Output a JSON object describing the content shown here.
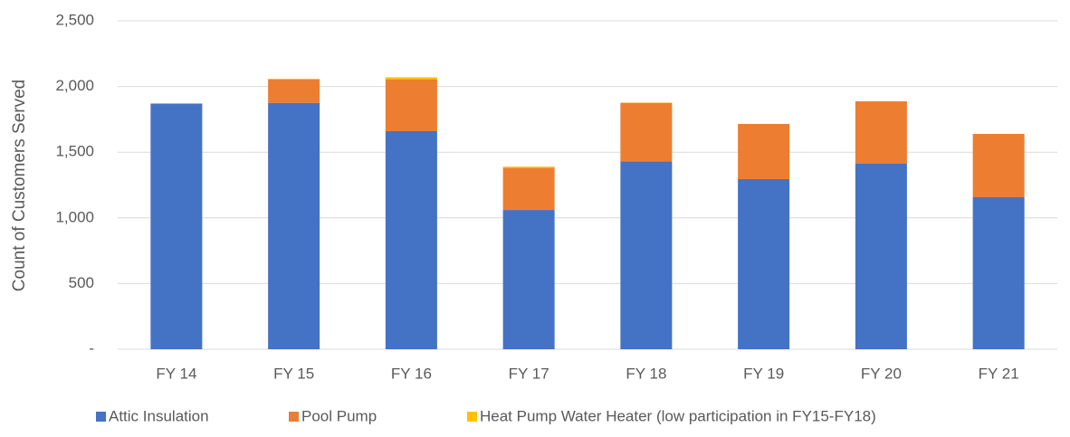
{
  "chart_data": {
    "type": "stacked_bar",
    "y_label": "Count of Customers Served",
    "categories": [
      "FY 14",
      "FY 15",
      "FY 16",
      "FY 17",
      "FY 18",
      "FY 19",
      "FY 20",
      "FY 21"
    ],
    "series": [
      {
        "name": "Attic Insulation",
        "color": "#4472c4",
        "values": [
          1870,
          1875,
          1660,
          1060,
          1430,
          1295,
          1412,
          1157
        ]
      },
      {
        "name": "Pool Pump",
        "color": "#ed7d31",
        "values": [
          0,
          180,
          395,
          320,
          445,
          420,
          475,
          482
        ]
      },
      {
        "name": "Heat Pump Water Heater (low participation in FY15-FY18)",
        "color": "#ffc000",
        "values": [
          0,
          3,
          15,
          10,
          3,
          0,
          0,
          0
        ]
      }
    ],
    "ylim": [
      0,
      2500
    ],
    "yticks": [
      {
        "value": 0,
        "label": "-"
      },
      500,
      {
        "value": 1000,
        "label": "1,000"
      },
      {
        "value": 1500,
        "label": "1,500"
      },
      {
        "value": 2000,
        "label": "2,000"
      },
      {
        "value": 2500,
        "label": "2,500"
      }
    ],
    "grid": true,
    "legend": "bottom"
  }
}
